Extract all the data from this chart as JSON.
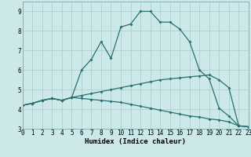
{
  "xlabel": "Humidex (Indice chaleur)",
  "xlim": [
    0,
    23
  ],
  "ylim": [
    3,
    9.5
  ],
  "xticks": [
    0,
    1,
    2,
    3,
    4,
    5,
    6,
    7,
    8,
    9,
    10,
    11,
    12,
    13,
    14,
    15,
    16,
    17,
    18,
    19,
    20,
    21,
    22,
    23
  ],
  "yticks": [
    3,
    4,
    5,
    6,
    7,
    8,
    9
  ],
  "bg_color": "#cce8e8",
  "grid_color": "#aacccc",
  "line_color": "#2a7070",
  "curve1_x": [
    0,
    1,
    2,
    3,
    4,
    5,
    6,
    7,
    8,
    9,
    10,
    11,
    12,
    13,
    14,
    15,
    16,
    17,
    18,
    19,
    20,
    21,
    22,
    23
  ],
  "curve1_y": [
    4.2,
    4.3,
    4.45,
    4.55,
    4.45,
    4.6,
    6.0,
    6.55,
    7.45,
    6.6,
    8.2,
    8.35,
    9.0,
    9.0,
    8.45,
    8.45,
    8.1,
    7.45,
    6.0,
    5.55,
    4.05,
    3.65,
    3.15,
    3.1
  ],
  "curve2_x": [
    0,
    1,
    2,
    3,
    4,
    5,
    6,
    7,
    8,
    9,
    10,
    11,
    12,
    13,
    14,
    15,
    16,
    17,
    18,
    19,
    20,
    21,
    22,
    23
  ],
  "curve2_y": [
    4.2,
    4.3,
    4.45,
    4.55,
    4.45,
    4.6,
    4.7,
    4.8,
    4.9,
    5.0,
    5.1,
    5.2,
    5.3,
    5.4,
    5.5,
    5.55,
    5.6,
    5.65,
    5.7,
    5.75,
    5.5,
    5.1,
    3.15,
    3.1
  ],
  "curve3_x": [
    0,
    1,
    2,
    3,
    4,
    5,
    6,
    7,
    8,
    9,
    10,
    11,
    12,
    13,
    14,
    15,
    16,
    17,
    18,
    19,
    20,
    21,
    22,
    23
  ],
  "curve3_y": [
    4.2,
    4.3,
    4.45,
    4.55,
    4.45,
    4.6,
    4.55,
    4.5,
    4.45,
    4.4,
    4.35,
    4.25,
    4.15,
    4.05,
    3.95,
    3.85,
    3.75,
    3.65,
    3.6,
    3.5,
    3.45,
    3.35,
    3.15,
    3.1
  ]
}
